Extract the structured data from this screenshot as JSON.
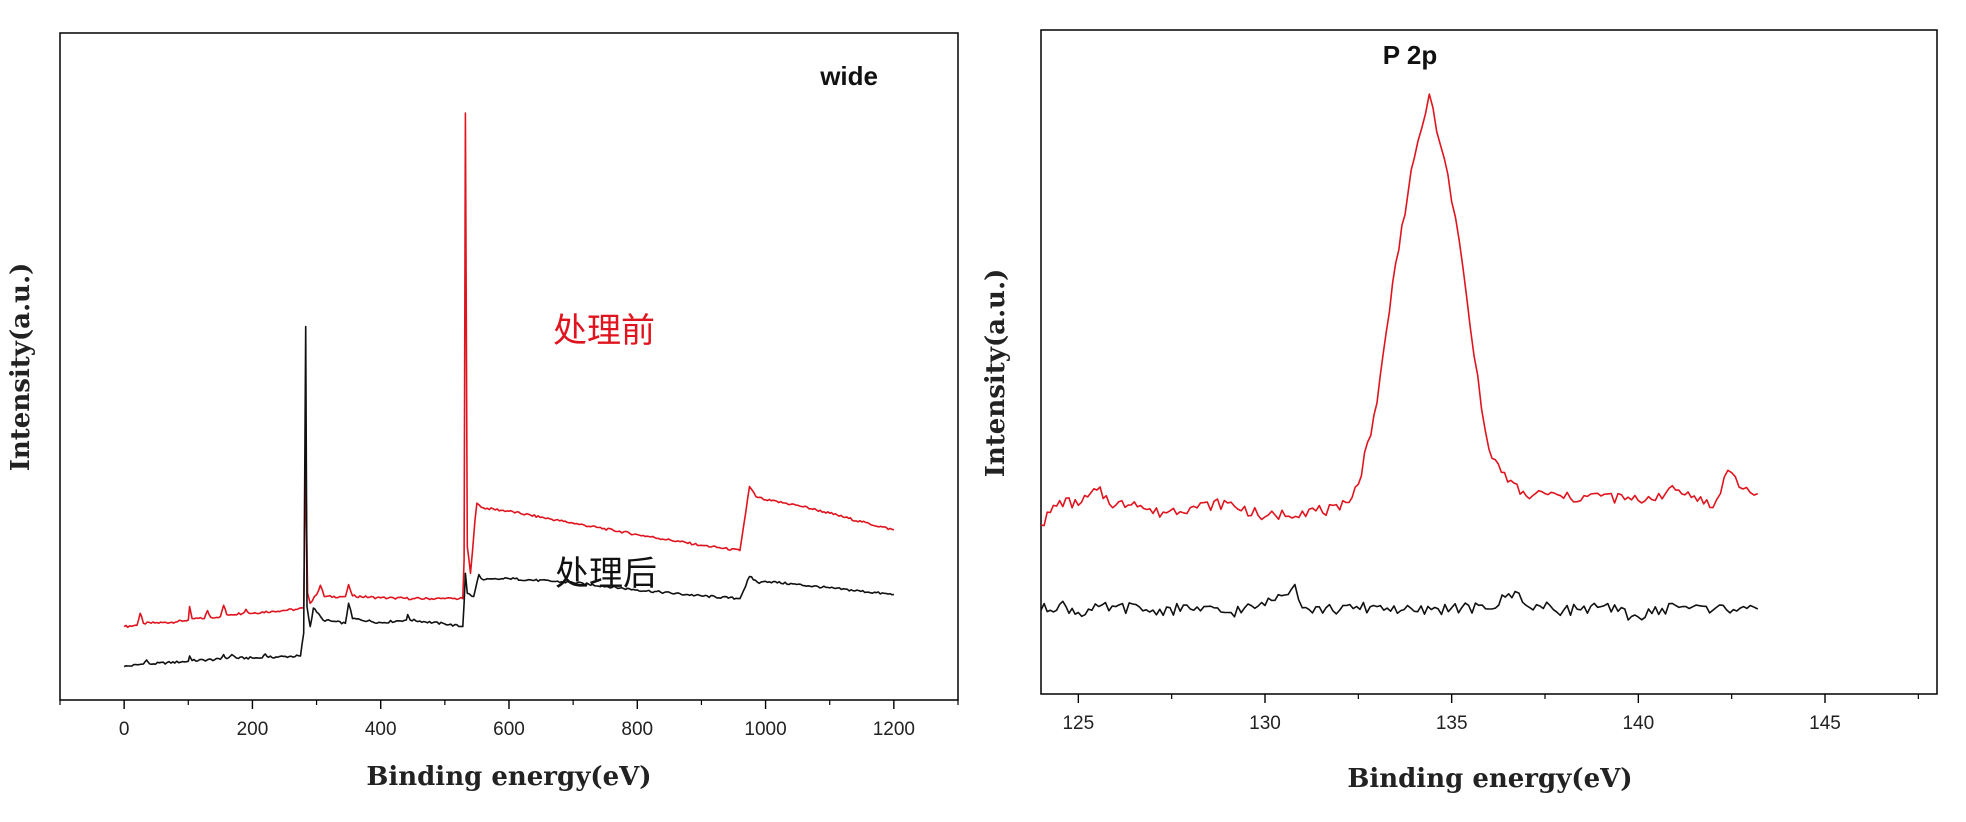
{
  "chart_data": [
    {
      "type": "line",
      "panel_label": "wide",
      "xlabel": "Binding energy(eV)",
      "ylabel": "Intensity(a.u.)",
      "xlim": [
        -100,
        1300
      ],
      "xticks": [
        "0",
        "200",
        "400",
        "600",
        "800",
        "1000",
        "1200"
      ],
      "xtick_values": [
        0,
        200,
        400,
        600,
        800,
        1000,
        1200
      ],
      "y_tick_labels_shown": false,
      "grid": false,
      "annotations": [
        {
          "text": "处理前",
          "color": "#e0141e",
          "refers_to": "before"
        },
        {
          "text": "处理后",
          "color": "#111111",
          "refers_to": "after"
        }
      ],
      "series": [
        {
          "key": "before",
          "color": "#e0141e",
          "points": [
            [
              0,
              1.1
            ],
            [
              20,
              1.12
            ],
            [
              25,
              1.3
            ],
            [
              30,
              1.15
            ],
            [
              60,
              1.16
            ],
            [
              80,
              1.17
            ],
            [
              100,
              1.2
            ],
            [
              102,
              1.4
            ],
            [
              106,
              1.22
            ],
            [
              125,
              1.22
            ],
            [
              130,
              1.34
            ],
            [
              135,
              1.24
            ],
            [
              150,
              1.25
            ],
            [
              155,
              1.42
            ],
            [
              160,
              1.28
            ],
            [
              185,
              1.3
            ],
            [
              190,
              1.36
            ],
            [
              195,
              1.3
            ],
            [
              230,
              1.33
            ],
            [
              270,
              1.36
            ],
            [
              280,
              1.38
            ],
            [
              283,
              3.55
            ],
            [
              286,
              1.6
            ],
            [
              290,
              1.45
            ],
            [
              300,
              1.58
            ],
            [
              306,
              1.72
            ],
            [
              312,
              1.55
            ],
            [
              345,
              1.55
            ],
            [
              350,
              1.73
            ],
            [
              356,
              1.56
            ],
            [
              400,
              1.53
            ],
            [
              420,
              1.53
            ],
            [
              450,
              1.52
            ],
            [
              500,
              1.52
            ],
            [
              528,
              1.52
            ],
            [
              530,
              2.1
            ],
            [
              532,
              8.8
            ],
            [
              535,
              2.3
            ],
            [
              540,
              1.9
            ],
            [
              547,
              2.7
            ],
            [
              550,
              2.95
            ],
            [
              560,
              2.88
            ],
            [
              600,
              2.83
            ],
            [
              700,
              2.65
            ],
            [
              800,
              2.48
            ],
            [
              900,
              2.32
            ],
            [
              960,
              2.24
            ],
            [
              975,
              3.2
            ],
            [
              985,
              3.05
            ],
            [
              1000,
              3.0
            ],
            [
              1050,
              2.92
            ],
            [
              1100,
              2.8
            ],
            [
              1150,
              2.67
            ],
            [
              1200,
              2.55
            ]
          ]
        },
        {
          "key": "after",
          "color": "#111111",
          "points": [
            [
              0,
              0.5
            ],
            [
              30,
              0.54
            ],
            [
              35,
              0.6
            ],
            [
              40,
              0.54
            ],
            [
              100,
              0.58
            ],
            [
              102,
              0.66
            ],
            [
              106,
              0.59
            ],
            [
              150,
              0.61
            ],
            [
              155,
              0.68
            ],
            [
              160,
              0.62
            ],
            [
              168,
              0.68
            ],
            [
              175,
              0.63
            ],
            [
              215,
              0.63
            ],
            [
              220,
              0.69
            ],
            [
              225,
              0.64
            ],
            [
              275,
              0.66
            ],
            [
              280,
              1.0
            ],
            [
              283,
              5.6
            ],
            [
              285,
              1.4
            ],
            [
              290,
              1.1
            ],
            [
              295,
              1.38
            ],
            [
              300,
              1.32
            ],
            [
              310,
              1.2
            ],
            [
              345,
              1.15
            ],
            [
              350,
              1.45
            ],
            [
              356,
              1.22
            ],
            [
              400,
              1.16
            ],
            [
              440,
              1.2
            ],
            [
              442,
              1.28
            ],
            [
              446,
              1.2
            ],
            [
              500,
              1.14
            ],
            [
              528,
              1.1
            ],
            [
              530,
              1.45
            ],
            [
              532,
              1.9
            ],
            [
              535,
              1.6
            ],
            [
              545,
              1.55
            ],
            [
              553,
              1.88
            ],
            [
              560,
              1.8
            ],
            [
              600,
              1.82
            ],
            [
              700,
              1.76
            ],
            [
              800,
              1.65
            ],
            [
              900,
              1.56
            ],
            [
              960,
              1.52
            ],
            [
              975,
              1.85
            ],
            [
              990,
              1.75
            ],
            [
              1000,
              1.78
            ],
            [
              1100,
              1.68
            ],
            [
              1200,
              1.58
            ]
          ]
        }
      ]
    },
    {
      "type": "line",
      "panel_label": "P 2p",
      "xlabel": "Binding energy(eV)",
      "ylabel": "Intensity(a.u.)",
      "xlim": [
        124,
        148
      ],
      "xticks": [
        "125",
        "130",
        "135",
        "140",
        "145"
      ],
      "xtick_values": [
        125,
        130,
        135,
        140,
        145
      ],
      "y_tick_labels_shown": false,
      "grid": false,
      "series": [
        {
          "key": "before",
          "color": "#e0141e",
          "points": [
            [
              124.0,
              1.15
            ],
            [
              124.5,
              1.36
            ],
            [
              125.0,
              1.32
            ],
            [
              125.5,
              1.45
            ],
            [
              126.0,
              1.32
            ],
            [
              126.5,
              1.35
            ],
            [
              127.0,
              1.25
            ],
            [
              128.0,
              1.3
            ],
            [
              129.0,
              1.34
            ],
            [
              130.0,
              1.22
            ],
            [
              131.0,
              1.27
            ],
            [
              132.0,
              1.28
            ],
            [
              132.5,
              1.5
            ],
            [
              133.0,
              2.2
            ],
            [
              133.5,
              3.4
            ],
            [
              134.0,
              4.3
            ],
            [
              134.4,
              4.85
            ],
            [
              134.8,
              4.3
            ],
            [
              135.2,
              3.6
            ],
            [
              135.6,
              2.6
            ],
            [
              136.0,
              1.8
            ],
            [
              136.5,
              1.52
            ],
            [
              137.0,
              1.4
            ],
            [
              137.5,
              1.42
            ],
            [
              138.0,
              1.38
            ],
            [
              139.0,
              1.4
            ],
            [
              140.0,
              1.36
            ],
            [
              141.0,
              1.45
            ],
            [
              141.5,
              1.4
            ],
            [
              142.0,
              1.3
            ],
            [
              142.4,
              1.62
            ],
            [
              142.8,
              1.46
            ],
            [
              143.2,
              1.42
            ]
          ]
        },
        {
          "key": "after",
          "color": "#111111",
          "points": [
            [
              124.0,
              0.42
            ],
            [
              124.5,
              0.47
            ],
            [
              125.0,
              0.4
            ],
            [
              126.0,
              0.45
            ],
            [
              127.0,
              0.42
            ],
            [
              128.0,
              0.43
            ],
            [
              129.0,
              0.4
            ],
            [
              130.0,
              0.46
            ],
            [
              130.8,
              0.64
            ],
            [
              131.0,
              0.44
            ],
            [
              132.0,
              0.42
            ],
            [
              133.0,
              0.45
            ],
            [
              134.0,
              0.41
            ],
            [
              135.0,
              0.44
            ],
            [
              136.0,
              0.43
            ],
            [
              136.7,
              0.58
            ],
            [
              137.0,
              0.46
            ],
            [
              138.0,
              0.42
            ],
            [
              139.0,
              0.45
            ],
            [
              140.0,
              0.36
            ],
            [
              141.0,
              0.46
            ],
            [
              142.0,
              0.42
            ],
            [
              143.0,
              0.46
            ],
            [
              143.2,
              0.43
            ]
          ]
        }
      ]
    }
  ]
}
